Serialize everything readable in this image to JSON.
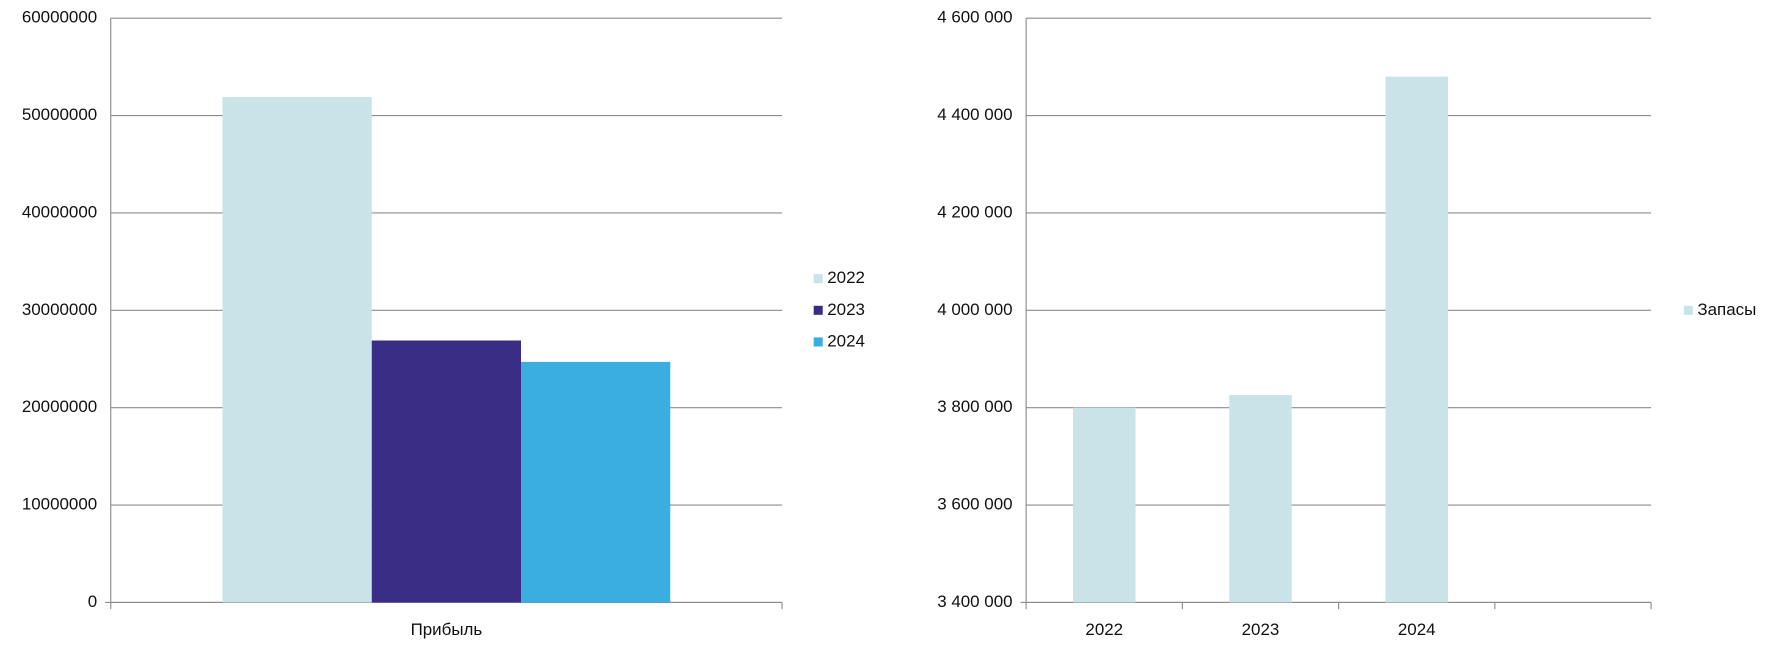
{
  "chart_data": [
    {
      "type": "bar",
      "categories": [
        "Прибыль"
      ],
      "series": [
        {
          "name": "2022",
          "color": "#c9e3e9",
          "values": [
            51900000
          ]
        },
        {
          "name": "2023",
          "color": "#3a2d85",
          "values": [
            26900000
          ]
        },
        {
          "name": "2024",
          "color": "#3aade1",
          "values": [
            24700000
          ]
        }
      ],
      "ylim": [
        0,
        60000000
      ],
      "yticks": [
        0,
        10000000,
        20000000,
        30000000,
        40000000,
        50000000,
        60000000
      ],
      "grid": true,
      "legend": "right"
    },
    {
      "type": "bar",
      "categories": [
        "2022",
        "2023",
        "2024",
        null
      ],
      "series": [
        {
          "name": "Запасы",
          "color": "#c9e3e9",
          "values": [
            3800000,
            3826000,
            4480000,
            null
          ]
        }
      ],
      "ylim": [
        3400000,
        4600000
      ],
      "yticks": [
        {
          "value": 3400000,
          "label": "3 400 000"
        },
        {
          "value": 3600000,
          "label": "3 600 000"
        },
        {
          "value": 3800000,
          "label": "3 800 000"
        },
        {
          "value": 4000000,
          "label": "4 000 000"
        },
        {
          "value": 4200000,
          "label": "4 200 000"
        },
        {
          "value": 4400000,
          "label": "4 400 000"
        },
        {
          "value": 4600000,
          "label": "4 600 000"
        }
      ],
      "grid": true,
      "legend": "right"
    }
  ]
}
